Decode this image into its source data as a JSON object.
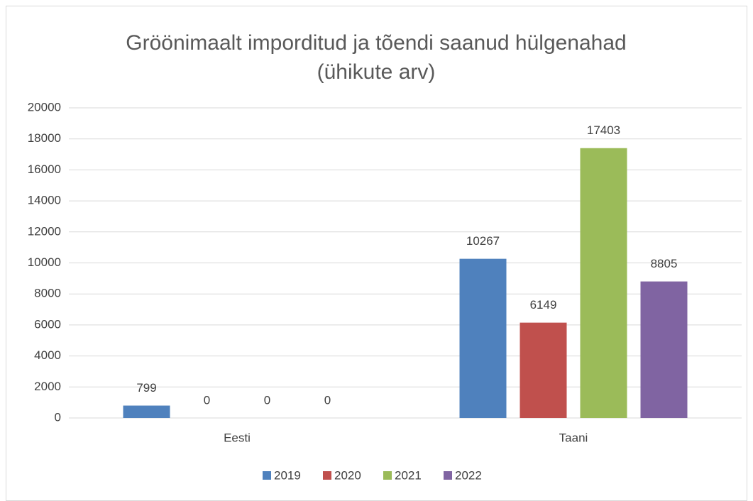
{
  "chart_data": {
    "type": "bar",
    "title": [
      "Gröönimaalt imporditud ja tõendi saanud hülgenahad",
      "(ühikute arv)"
    ],
    "categories": [
      "Eesti",
      "Taani"
    ],
    "series": [
      {
        "name": "2019",
        "color": "#4f81bd",
        "values": [
          799,
          10267
        ]
      },
      {
        "name": "2020",
        "color": "#c0504d",
        "values": [
          0,
          6149
        ]
      },
      {
        "name": "2021",
        "color": "#9bbb59",
        "values": [
          0,
          17403
        ]
      },
      {
        "name": "2022",
        "color": "#8064a2",
        "values": [
          0,
          8805
        ]
      }
    ],
    "ylim": [
      0,
      20000
    ],
    "yticks": [
      0,
      2000,
      4000,
      6000,
      8000,
      10000,
      12000,
      14000,
      16000,
      18000,
      20000
    ],
    "grid": true,
    "legend": "bottom"
  }
}
